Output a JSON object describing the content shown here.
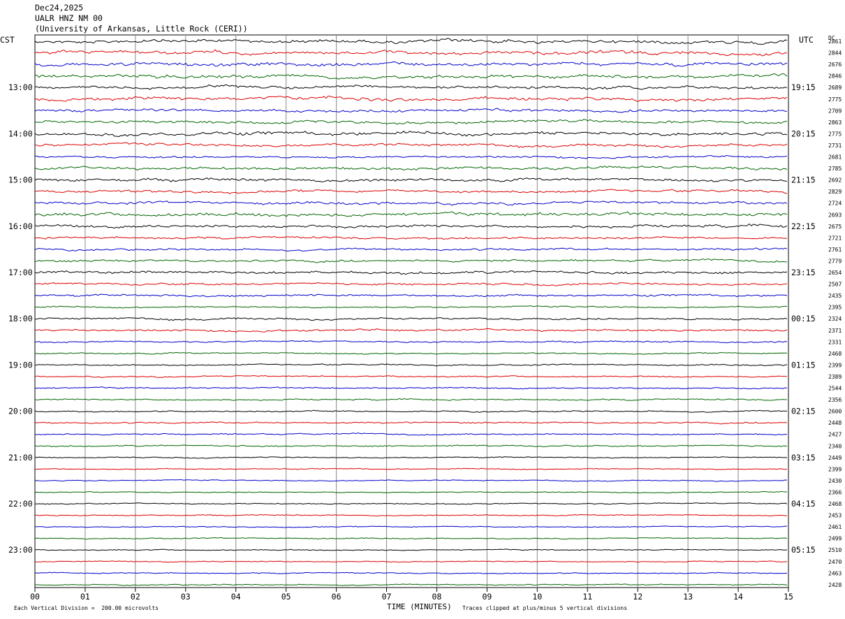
{
  "header": {
    "date": "Dec24,2025",
    "station": "UALR HNZ NM 00",
    "network": "(University of Arkansas, Little Rock (CERI))"
  },
  "left_tz": "CST",
  "right_tz": "UTC",
  "dc_label": "DC",
  "footer": {
    "left": "Each Vertical Division =  200.00 microvolts",
    "right": "Traces clipped at plus/minus 5 vertical divisions"
  },
  "chart_data": {
    "type": "line",
    "description_type": "helicorder",
    "xlabel": "TIME (MINUTES)",
    "x_ticks": [
      "00",
      "01",
      "02",
      "03",
      "04",
      "05",
      "06",
      "07",
      "08",
      "09",
      "10",
      "11",
      "12",
      "13",
      "14",
      "15"
    ],
    "xlim": [
      0,
      15
    ],
    "left_time_labels": [
      "13:00",
      "14:00",
      "15:00",
      "16:00",
      "17:00",
      "18:00",
      "19:00",
      "20:00",
      "21:00",
      "22:00",
      "23:00"
    ],
    "right_time_labels": [
      "19:15",
      "20:15",
      "21:15",
      "22:15",
      "23:15",
      "00:15",
      "01:15",
      "02:15",
      "03:15",
      "04:15",
      "05:15"
    ],
    "trace_colors": [
      "#000000",
      "#dd0000",
      "#0000cc",
      "#006600"
    ],
    "dc_values": [
      "2861",
      "2844",
      "2676",
      "2846",
      "2689",
      "2775",
      "2709",
      "2863",
      "2775",
      "2731",
      "2681",
      "2785",
      "2692",
      "2829",
      "2724",
      "2693",
      "2675",
      "2721",
      "2761",
      "2779",
      "2654",
      "2507",
      "2435",
      "2395",
      "2324",
      "2371",
      "2331",
      "2468",
      "2399",
      "2389",
      "2544",
      "2356",
      "2600",
      "2448",
      "2427",
      "2340",
      "2449",
      "2399",
      "2430",
      "2366",
      "2468",
      "2453",
      "2461",
      "2499",
      "2510",
      "2470",
      "2463",
      "2428"
    ],
    "trace_amplitude": [
      5,
      5,
      5,
      5,
      4,
      5,
      4,
      4,
      5,
      4,
      3,
      4,
      4,
      4,
      4,
      5,
      4,
      3,
      3,
      3,
      4,
      3,
      3,
      2,
      3,
      3,
      2,
      2,
      2,
      2,
      2,
      2,
      2,
      2,
      2,
      2,
      1.5,
      1.5,
      1.5,
      1.5,
      1.5,
      1.5,
      1.5,
      1.5,
      1.5,
      1.5,
      1.5,
      1.5
    ]
  }
}
